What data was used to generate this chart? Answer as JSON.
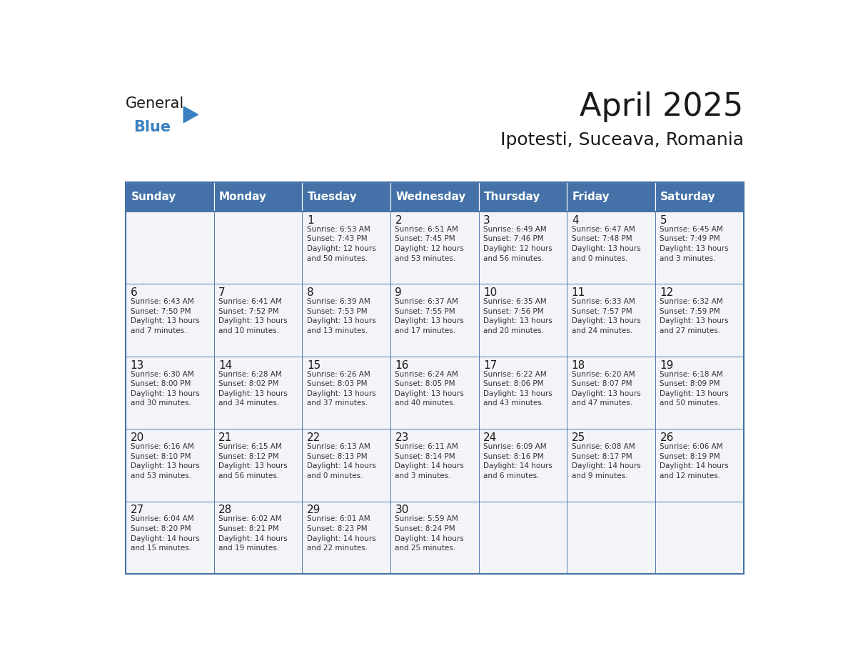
{
  "title": "April 2025",
  "subtitle": "Ipotesti, Suceava, Romania",
  "header_color": "#4472a8",
  "header_text_color": "#ffffff",
  "border_color": "#4472a8",
  "cell_bg_color": "#f2f4f7",
  "day_names": [
    "Sunday",
    "Monday",
    "Tuesday",
    "Wednesday",
    "Thursday",
    "Friday",
    "Saturday"
  ],
  "weeks": [
    [
      {
        "day": "",
        "info": ""
      },
      {
        "day": "",
        "info": ""
      },
      {
        "day": "1",
        "info": "Sunrise: 6:53 AM\nSunset: 7:43 PM\nDaylight: 12 hours\nand 50 minutes."
      },
      {
        "day": "2",
        "info": "Sunrise: 6:51 AM\nSunset: 7:45 PM\nDaylight: 12 hours\nand 53 minutes."
      },
      {
        "day": "3",
        "info": "Sunrise: 6:49 AM\nSunset: 7:46 PM\nDaylight: 12 hours\nand 56 minutes."
      },
      {
        "day": "4",
        "info": "Sunrise: 6:47 AM\nSunset: 7:48 PM\nDaylight: 13 hours\nand 0 minutes."
      },
      {
        "day": "5",
        "info": "Sunrise: 6:45 AM\nSunset: 7:49 PM\nDaylight: 13 hours\nand 3 minutes."
      }
    ],
    [
      {
        "day": "6",
        "info": "Sunrise: 6:43 AM\nSunset: 7:50 PM\nDaylight: 13 hours\nand 7 minutes."
      },
      {
        "day": "7",
        "info": "Sunrise: 6:41 AM\nSunset: 7:52 PM\nDaylight: 13 hours\nand 10 minutes."
      },
      {
        "day": "8",
        "info": "Sunrise: 6:39 AM\nSunset: 7:53 PM\nDaylight: 13 hours\nand 13 minutes."
      },
      {
        "day": "9",
        "info": "Sunrise: 6:37 AM\nSunset: 7:55 PM\nDaylight: 13 hours\nand 17 minutes."
      },
      {
        "day": "10",
        "info": "Sunrise: 6:35 AM\nSunset: 7:56 PM\nDaylight: 13 hours\nand 20 minutes."
      },
      {
        "day": "11",
        "info": "Sunrise: 6:33 AM\nSunset: 7:57 PM\nDaylight: 13 hours\nand 24 minutes."
      },
      {
        "day": "12",
        "info": "Sunrise: 6:32 AM\nSunset: 7:59 PM\nDaylight: 13 hours\nand 27 minutes."
      }
    ],
    [
      {
        "day": "13",
        "info": "Sunrise: 6:30 AM\nSunset: 8:00 PM\nDaylight: 13 hours\nand 30 minutes."
      },
      {
        "day": "14",
        "info": "Sunrise: 6:28 AM\nSunset: 8:02 PM\nDaylight: 13 hours\nand 34 minutes."
      },
      {
        "day": "15",
        "info": "Sunrise: 6:26 AM\nSunset: 8:03 PM\nDaylight: 13 hours\nand 37 minutes."
      },
      {
        "day": "16",
        "info": "Sunrise: 6:24 AM\nSunset: 8:05 PM\nDaylight: 13 hours\nand 40 minutes."
      },
      {
        "day": "17",
        "info": "Sunrise: 6:22 AM\nSunset: 8:06 PM\nDaylight: 13 hours\nand 43 minutes."
      },
      {
        "day": "18",
        "info": "Sunrise: 6:20 AM\nSunset: 8:07 PM\nDaylight: 13 hours\nand 47 minutes."
      },
      {
        "day": "19",
        "info": "Sunrise: 6:18 AM\nSunset: 8:09 PM\nDaylight: 13 hours\nand 50 minutes."
      }
    ],
    [
      {
        "day": "20",
        "info": "Sunrise: 6:16 AM\nSunset: 8:10 PM\nDaylight: 13 hours\nand 53 minutes."
      },
      {
        "day": "21",
        "info": "Sunrise: 6:15 AM\nSunset: 8:12 PM\nDaylight: 13 hours\nand 56 minutes."
      },
      {
        "day": "22",
        "info": "Sunrise: 6:13 AM\nSunset: 8:13 PM\nDaylight: 14 hours\nand 0 minutes."
      },
      {
        "day": "23",
        "info": "Sunrise: 6:11 AM\nSunset: 8:14 PM\nDaylight: 14 hours\nand 3 minutes."
      },
      {
        "day": "24",
        "info": "Sunrise: 6:09 AM\nSunset: 8:16 PM\nDaylight: 14 hours\nand 6 minutes."
      },
      {
        "day": "25",
        "info": "Sunrise: 6:08 AM\nSunset: 8:17 PM\nDaylight: 14 hours\nand 9 minutes."
      },
      {
        "day": "26",
        "info": "Sunrise: 6:06 AM\nSunset: 8:19 PM\nDaylight: 14 hours\nand 12 minutes."
      }
    ],
    [
      {
        "day": "27",
        "info": "Sunrise: 6:04 AM\nSunset: 8:20 PM\nDaylight: 14 hours\nand 15 minutes."
      },
      {
        "day": "28",
        "info": "Sunrise: 6:02 AM\nSunset: 8:21 PM\nDaylight: 14 hours\nand 19 minutes."
      },
      {
        "day": "29",
        "info": "Sunrise: 6:01 AM\nSunset: 8:23 PM\nDaylight: 14 hours\nand 22 minutes."
      },
      {
        "day": "30",
        "info": "Sunrise: 5:59 AM\nSunset: 8:24 PM\nDaylight: 14 hours\nand 25 minutes."
      },
      {
        "day": "",
        "info": ""
      },
      {
        "day": "",
        "info": ""
      },
      {
        "day": "",
        "info": ""
      }
    ]
  ],
  "logo_text_general": "General",
  "logo_text_blue": "Blue",
  "logo_color_general": "#1a1a1a",
  "logo_color_blue": "#3a80c0",
  "logo_triangle_color": "#3a80c0",
  "title_fontsize": 32,
  "subtitle_fontsize": 18,
  "header_fontsize": 11,
  "day_num_fontsize": 11,
  "info_fontsize": 7.5
}
